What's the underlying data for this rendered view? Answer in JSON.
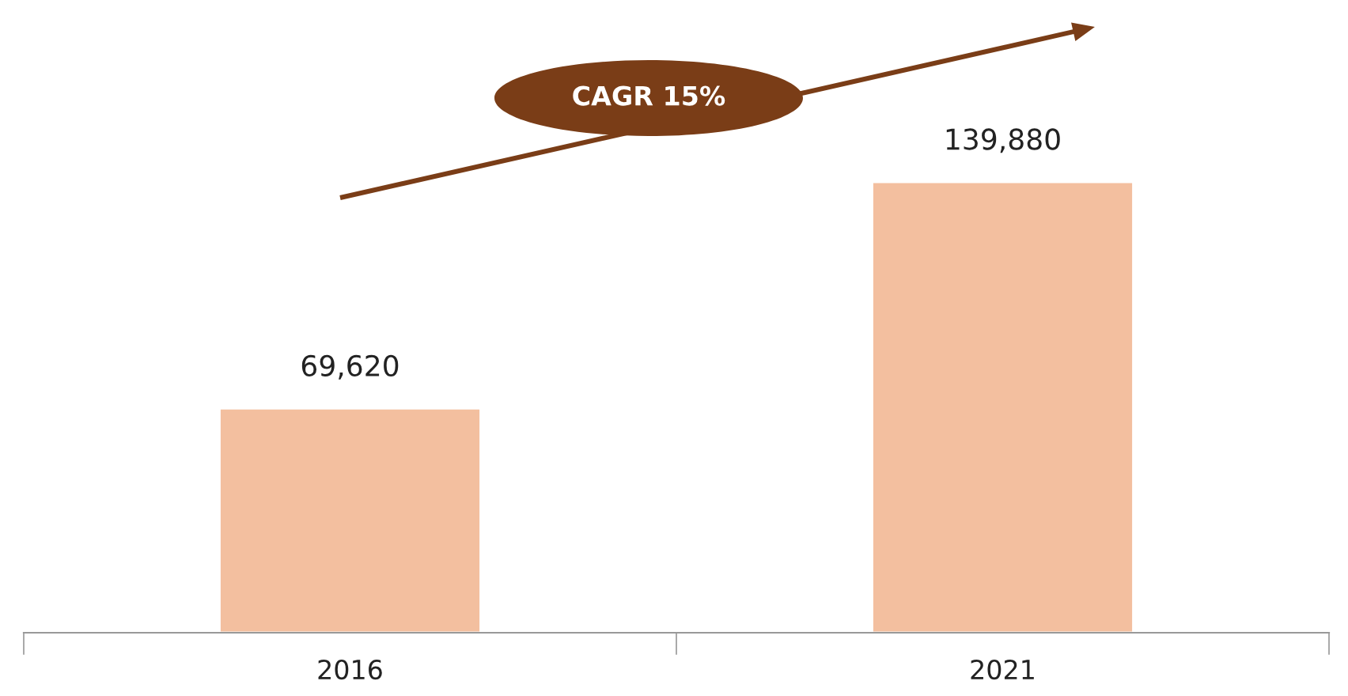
{
  "chart_data": {
    "type": "bar",
    "categories": [
      "2016",
      "2021"
    ],
    "values": [
      69620,
      139880
    ],
    "color": "#f3bf9f",
    "value_labels": [
      "69,620",
      "139,880"
    ],
    "grid": false,
    "legend": false,
    "annotations": [
      "CAGR 15%"
    ]
  }
}
